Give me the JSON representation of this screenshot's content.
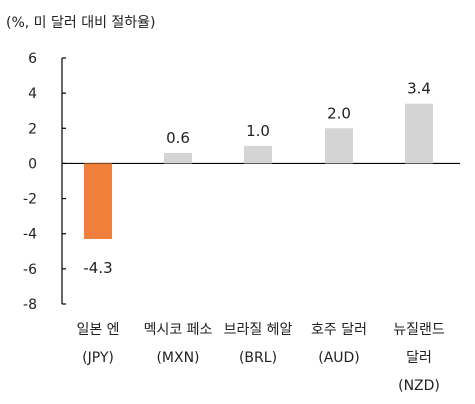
{
  "chart_data": {
    "type": "bar",
    "unit_label": "(%, 미 달러 대비 절하율)",
    "categories": [
      [
        "일본 엔",
        "(JPY)"
      ],
      [
        "멕시코 페소",
        "(MXN)"
      ],
      [
        "브라질 헤알",
        "(BRL)"
      ],
      [
        "호주 달러",
        "(AUD)"
      ],
      [
        "뉴질랜드",
        "달러",
        "(NZD)"
      ]
    ],
    "values": [
      -4.3,
      0.6,
      1.0,
      2.0,
      3.4
    ],
    "value_labels": [
      "-4.3",
      "0.6",
      "1.0",
      "2.0",
      "3.4"
    ],
    "bar_colors": [
      "#F07F3C",
      "#D4D4D4",
      "#D4D4D4",
      "#D4D4D4",
      "#D4D4D4"
    ],
    "ylim": [
      -8,
      6
    ],
    "yticks": [
      6,
      4,
      2,
      0,
      -2,
      -4,
      -6,
      -8
    ],
    "grid": false,
    "legend": "none",
    "axis_color": "#000000"
  }
}
